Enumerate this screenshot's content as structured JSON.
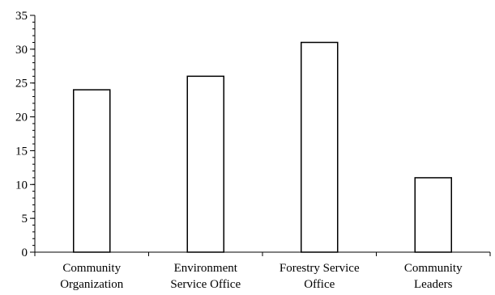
{
  "chart_data": {
    "type": "bar",
    "categories": [
      [
        "Community",
        "Organization"
      ],
      [
        "Environment",
        "Service Office"
      ],
      [
        "Forestry Service",
        "Office"
      ],
      [
        "Community",
        "Leaders"
      ]
    ],
    "values": [
      24,
      26,
      31,
      11
    ],
    "title": "",
    "xlabel": "",
    "ylabel": "",
    "ylim": [
      0,
      35
    ],
    "yticks": [
      0,
      5,
      10,
      15,
      20,
      25,
      30,
      35
    ],
    "grid": false,
    "legend": "none",
    "colors": {
      "bar_fill": "#ffffff",
      "bar_stroke": "#000000",
      "axis": "#000000"
    }
  }
}
